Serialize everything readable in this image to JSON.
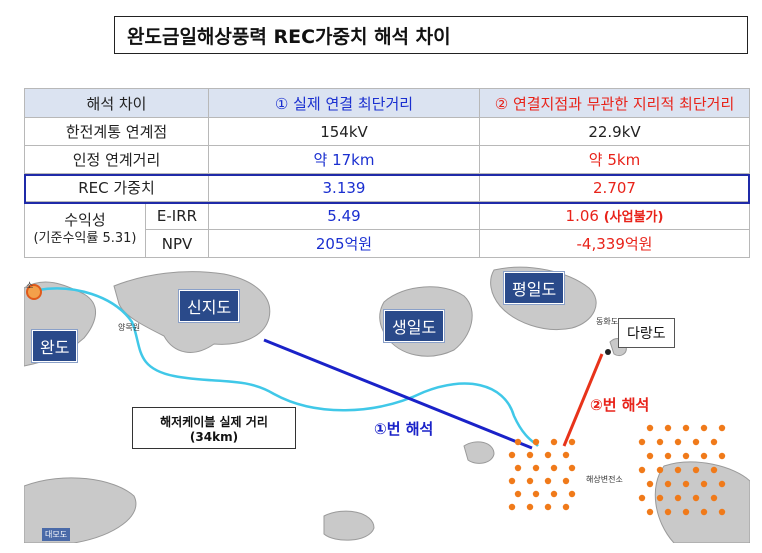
{
  "title": "완도금일해상풍력 REC가중치 해석 차이",
  "table": {
    "header": [
      "해석 차이",
      "① 실제 연결 최단거리",
      "② 연결지점과 무관한 지리적 최단거리"
    ],
    "rows": [
      {
        "label": "한전계통 연계점",
        "a": "154kV",
        "b": "22.9kV"
      },
      {
        "label": "인정 연계거리",
        "a": "약 17km",
        "b": "약 5km"
      },
      {
        "label": "REC 가중치",
        "a": "3.139",
        "b": "2.707"
      }
    ],
    "profit": {
      "label": "수익성",
      "sub": "(기준수익률 5.31)",
      "rows": [
        {
          "metric": "E-IRR",
          "a": "5.49",
          "b": "1.06",
          "b_note": "(사업불가)"
        },
        {
          "metric": "NPV",
          "a": "205억원",
          "b": "-4,339억원"
        }
      ]
    }
  },
  "map": {
    "islands": [
      "완도",
      "신지도",
      "생일도",
      "평일도",
      "다랑도"
    ],
    "small_labels": [
      "양목원",
      "대모도",
      "해상변전소",
      "동화도",
      "소"
    ],
    "cable_box": {
      "line1": "해저케이블 실제 거리",
      "line2": "(34km)"
    },
    "interp1": "①번 해석",
    "interp2": "②번 해석"
  },
  "colors": {
    "blue_line": "#1a22c8",
    "red_line": "#e8331a",
    "cable": "#40c8e8",
    "turbine": "#f07a1a",
    "header_bg": "#dbe3f1"
  }
}
